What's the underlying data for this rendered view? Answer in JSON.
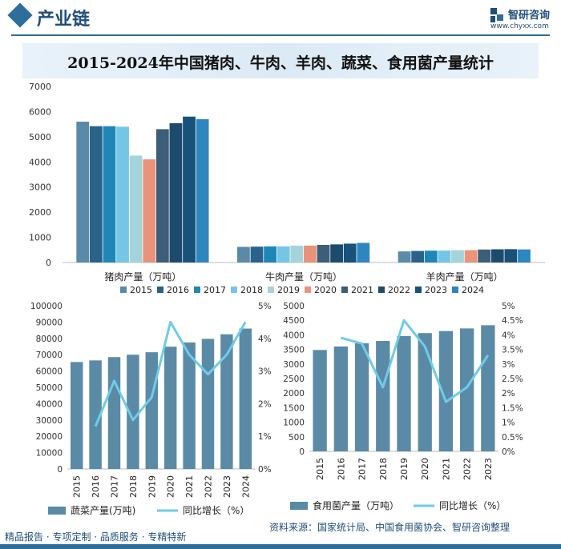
{
  "header": {
    "title": "产业链"
  },
  "logo": {
    "name": "智研咨询",
    "url": "www.chyxx.com"
  },
  "main_title": "2015-2024年中国猪肉、牛肉、羊肉、蔬菜、食用菌产量统计",
  "footer": {
    "left": "精品报告 · 专项定制 · 品质服务 · 专精特新",
    "source": "资料来源：国家统计局、中国食用菌协会、智研咨询整理"
  },
  "colors": {
    "years": [
      "#5b8aa8",
      "#2a6389",
      "#1f87b8",
      "#74c7e4",
      "#a4d3dc",
      "#e9937a",
      "#3d5e78",
      "#1d4b6e",
      "#17527a",
      "#2e86c1"
    ],
    "bar": "#5a8aa6",
    "line": "#6fcbe9"
  },
  "chart_data": [
    {
      "type": "bar",
      "categories": [
        "猪肉产量（万吨）",
        "牛肉产量（万吨）",
        "羊肉产量（万吨）"
      ],
      "series": [
        {
          "name": "2015",
          "values": [
            5600,
            620,
            440
          ]
        },
        {
          "name": "2016",
          "values": [
            5420,
            630,
            460
          ]
        },
        {
          "name": "2017",
          "values": [
            5420,
            640,
            470
          ]
        },
        {
          "name": "2018",
          "values": [
            5400,
            640,
            475
          ]
        },
        {
          "name": "2019",
          "values": [
            4250,
            670,
            490
          ]
        },
        {
          "name": "2020",
          "values": [
            4100,
            670,
            490
          ]
        },
        {
          "name": "2021",
          "values": [
            5300,
            700,
            515
          ]
        },
        {
          "name": "2022",
          "values": [
            5540,
            720,
            525
          ]
        },
        {
          "name": "2023",
          "values": [
            5800,
            750,
            530
          ]
        },
        {
          "name": "2024",
          "values": [
            5700,
            780,
            520
          ]
        }
      ],
      "yticks": [
        "0",
        "1000",
        "2000",
        "3000",
        "4000",
        "5000",
        "6000",
        "7000"
      ],
      "ylim": [
        0,
        7000
      ],
      "legend": "bottom"
    },
    {
      "type": "bar",
      "categories": [
        "2015",
        "2016",
        "2017",
        "2018",
        "2019",
        "2020",
        "2021",
        "2022",
        "2023",
        "2024"
      ],
      "series": [
        {
          "name": "蔬菜产量(万吨)",
          "values": [
            65500,
            66500,
            68500,
            70000,
            71500,
            74900,
            77500,
            79700,
            82500,
            86000
          ],
          "axis": "left"
        },
        {
          "name": "同比增长（%）",
          "type": "line",
          "values": [
            null,
            1.3,
            2.7,
            1.5,
            2.2,
            4.5,
            3.5,
            2.9,
            3.5,
            4.5
          ],
          "axis": "right"
        }
      ],
      "yticks": [
        "0",
        "10000",
        "20000",
        "30000",
        "40000",
        "50000",
        "60000",
        "70000",
        "80000",
        "90000",
        "100000"
      ],
      "ylim": [
        0,
        100000
      ],
      "y2ticks": [
        "0%",
        "1%",
        "2%",
        "3%",
        "4%",
        "5%"
      ],
      "y2lim": [
        0,
        5
      ],
      "legend": "bottom"
    },
    {
      "type": "bar",
      "categories": [
        "2015",
        "2016",
        "2017",
        "2018",
        "2019",
        "2020",
        "2021",
        "2022",
        "2023"
      ],
      "series": [
        {
          "name": "食用菌产量（万吨）",
          "values": [
            3480,
            3600,
            3710,
            3790,
            3960,
            4060,
            4130,
            4220,
            4330
          ],
          "axis": "left"
        },
        {
          "name": "同比增长（%）",
          "type": "line",
          "values": [
            null,
            3.9,
            3.7,
            2.2,
            4.5,
            3.6,
            1.7,
            2.2,
            3.3
          ],
          "axis": "right"
        }
      ],
      "yticks": [
        "0",
        "500",
        "1000",
        "1500",
        "2000",
        "2500",
        "3000",
        "3500",
        "4000",
        "4500",
        "5000"
      ],
      "ylim": [
        0,
        5000
      ],
      "y2ticks": [
        "0%",
        "0.5%",
        "1%",
        "1.5%",
        "2%",
        "2.5%",
        "3%",
        "3.5%",
        "4%",
        "4.5%",
        "5%"
      ],
      "y2lim": [
        0,
        5
      ],
      "legend": "bottom"
    }
  ]
}
